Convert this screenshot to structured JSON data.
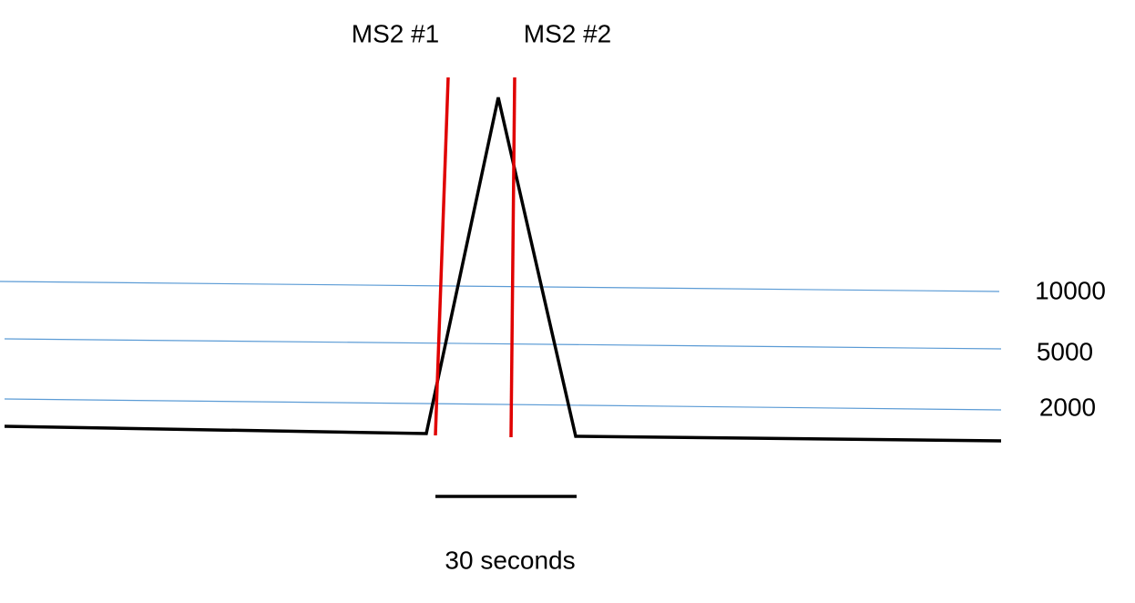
{
  "markers": [
    {
      "label": "MS2 #1"
    },
    {
      "label": "MS2 #2"
    }
  ],
  "thresholds": [
    {
      "label": "10000"
    },
    {
      "label": "5000"
    },
    {
      "label": "2000"
    }
  ],
  "scale_bar": {
    "label": "30 seconds"
  }
}
